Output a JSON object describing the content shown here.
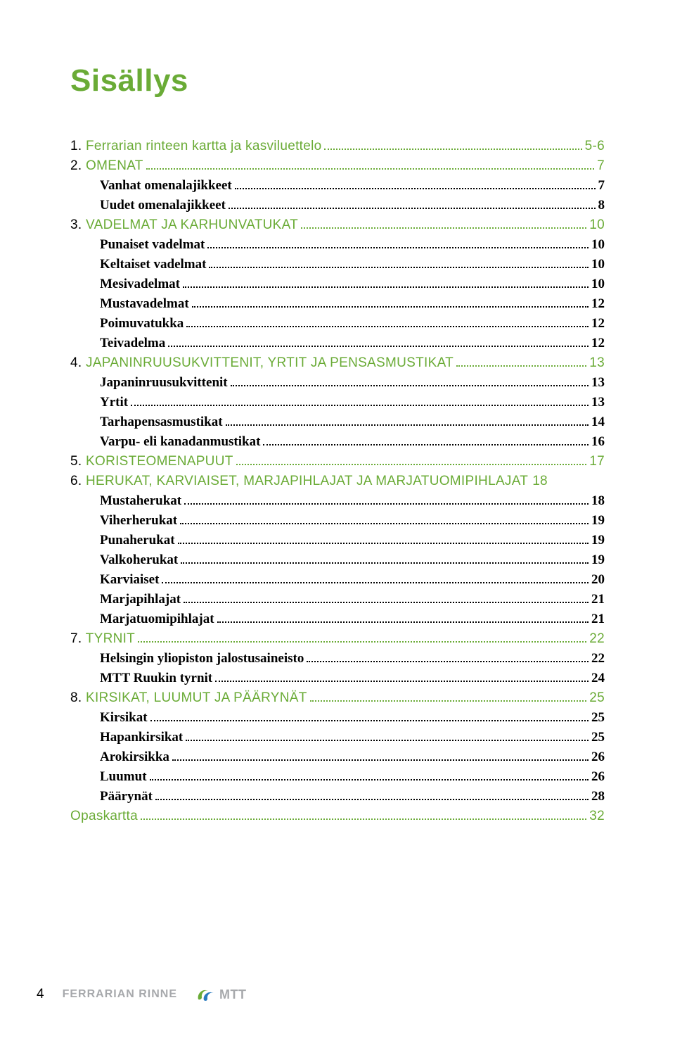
{
  "title": "Sisällys",
  "accent_color": "#6aab36",
  "text_color": "#000000",
  "muted_color": "#a7a9ac",
  "toc": [
    {
      "level": 1,
      "num": "1.",
      "text": "Ferrarian rinteen kartta ja kasviluettelo",
      "page": "5-6",
      "color": "accent",
      "uppercase": false
    },
    {
      "level": 1,
      "num": "2.",
      "text": "Omenat",
      "page": "7",
      "color": "accent",
      "uppercase": true
    },
    {
      "level": 2,
      "text": "Vanhat omenalajikkeet",
      "page": "7"
    },
    {
      "level": 2,
      "text": "Uudet omenalajikkeet",
      "page": "8"
    },
    {
      "level": 1,
      "num": "3.",
      "text": "Vadelmat ja karhunvatukat",
      "page": "10",
      "color": "accent",
      "uppercase": true
    },
    {
      "level": 2,
      "text": "Punaiset vadelmat",
      "page": "10"
    },
    {
      "level": 2,
      "text": "Keltaiset  vadelmat",
      "page": "10"
    },
    {
      "level": 2,
      "text": "Mesivadelmat",
      "page": "10"
    },
    {
      "level": 2,
      "text": "Mustavadelmat",
      "page": "12"
    },
    {
      "level": 2,
      "text": "Poimuvatukka",
      "page": "12"
    },
    {
      "level": 2,
      "text": "Teivadelma",
      "page": "12"
    },
    {
      "level": 1,
      "num": "4.",
      "text": "Japaninruusukvittenit, yrtit ja pensasmustikat",
      "page": "13",
      "color": "accent",
      "uppercase": true
    },
    {
      "level": 2,
      "text": "Japaninruusukvittenit",
      "page": "13"
    },
    {
      "level": 2,
      "text": "Yrtit",
      "page": "13"
    },
    {
      "level": 2,
      "text": "Tarhapensasmustikat",
      "page": "14"
    },
    {
      "level": 2,
      "text": "Varpu- eli kanadanmustikat",
      "page": "16"
    },
    {
      "level": 1,
      "num": "5.",
      "text": "Koristeomenapuut",
      "page": "17",
      "color": "accent",
      "uppercase": true
    },
    {
      "level": 1,
      "num": "6.",
      "text": "Herukat, karviaiset, marjapihlajat ja marjatuomipihlajat",
      "page": "18",
      "color": "accent",
      "uppercase": true,
      "nodots": true
    },
    {
      "level": 2,
      "text": "Mustaherukat",
      "page": "18"
    },
    {
      "level": 2,
      "text": "Viherherukat",
      "page": "19"
    },
    {
      "level": 2,
      "text": "Punaherukat",
      "page": "19"
    },
    {
      "level": 2,
      "text": "Valkoherukat",
      "page": "19"
    },
    {
      "level": 2,
      "text": "Karviaiset",
      "page": "20"
    },
    {
      "level": 2,
      "text": "Marjapihlajat",
      "page": "21"
    },
    {
      "level": 2,
      "text": "Marjatuomipihlajat",
      "page": "21"
    },
    {
      "level": 1,
      "num": "7.",
      "text": "Tyrnit",
      "page": "22",
      "color": "accent",
      "uppercase": true
    },
    {
      "level": 2,
      "text": "Helsingin yliopiston jalostusaineisto",
      "page": "22"
    },
    {
      "level": 2,
      "text": "MTT Ruukin tyrnit",
      "page": "24"
    },
    {
      "level": 1,
      "num": "8.",
      "text": "Kirsikat, luumut ja päärynät",
      "page": "25",
      "color": "accent",
      "uppercase": true
    },
    {
      "level": 2,
      "text": "Kirsikat",
      "page": "25"
    },
    {
      "level": 2,
      "text": "Hapankirsikat",
      "page": "25"
    },
    {
      "level": 2,
      "text": "Arokirsikka",
      "page": "26"
    },
    {
      "level": 2,
      "text": "Luumut",
      "page": "26"
    },
    {
      "level": 2,
      "text": "Päärynät",
      "page": "28"
    },
    {
      "level": 1,
      "num": "",
      "text": "Opaskartta",
      "page": "32",
      "color": "accent",
      "uppercase": false
    }
  ],
  "footer": {
    "page_number": "4",
    "brand": "FERRARIAN RINNE",
    "logo_text": "MTT"
  }
}
